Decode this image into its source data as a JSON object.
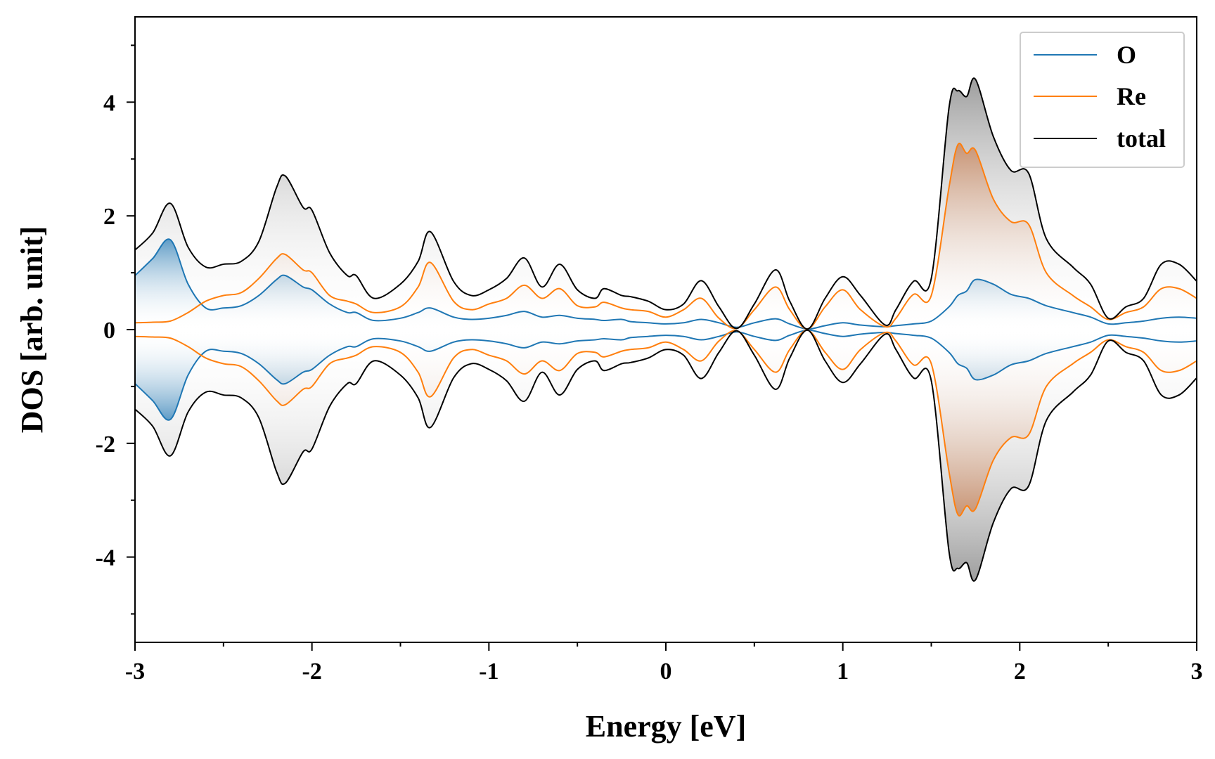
{
  "chart_data": {
    "type": "line",
    "title": "",
    "xlabel": "Energy [eV]",
    "ylabel": "DOS [arb. unit]",
    "xlim": [
      -3,
      3
    ],
    "ylim": [
      -5.5,
      5.5
    ],
    "x_ticks": [
      -3,
      -2,
      -1,
      0,
      1,
      2,
      3
    ],
    "y_ticks": [
      -4,
      -2,
      0,
      2,
      4
    ],
    "mirrored_about_zero": true,
    "legend_position": "top-right",
    "grid": false,
    "x": [
      -3.0,
      -2.9,
      -2.8,
      -2.7,
      -2.6,
      -2.5,
      -2.4,
      -2.3,
      -2.2,
      -2.15,
      -2.05,
      -2.0,
      -1.9,
      -1.8,
      -1.75,
      -1.65,
      -1.5,
      -1.4,
      -1.33,
      -1.2,
      -1.1,
      -1.0,
      -0.9,
      -0.8,
      -0.7,
      -0.6,
      -0.5,
      -0.4,
      -0.35,
      -0.25,
      -0.2,
      -0.1,
      0.0,
      0.1,
      0.2,
      0.3,
      0.4,
      0.5,
      0.62,
      0.7,
      0.8,
      0.9,
      1.0,
      1.1,
      1.24,
      1.3,
      1.4,
      1.5,
      1.6,
      1.65,
      1.7,
      1.75,
      1.85,
      1.95,
      2.05,
      2.15,
      2.3,
      2.4,
      2.5,
      2.6,
      2.7,
      2.8,
      2.9,
      3.0
    ],
    "series": [
      {
        "name": "O",
        "color": "#1f77b4",
        "values": [
          0.95,
          1.25,
          1.58,
          0.8,
          0.38,
          0.38,
          0.42,
          0.6,
          0.88,
          0.95,
          0.75,
          0.7,
          0.45,
          0.3,
          0.3,
          0.16,
          0.2,
          0.3,
          0.38,
          0.22,
          0.18,
          0.2,
          0.25,
          0.32,
          0.22,
          0.25,
          0.2,
          0.18,
          0.16,
          0.18,
          0.14,
          0.12,
          0.1,
          0.12,
          0.18,
          0.12,
          0.04,
          0.12,
          0.19,
          0.1,
          0.01,
          0.07,
          0.12,
          0.08,
          0.05,
          0.07,
          0.1,
          0.15,
          0.4,
          0.6,
          0.68,
          0.88,
          0.8,
          0.62,
          0.55,
          0.42,
          0.3,
          0.22,
          0.1,
          0.12,
          0.15,
          0.2,
          0.22,
          0.2
        ]
      },
      {
        "name": "Re",
        "color": "#ff7f0e",
        "values": [
          0.12,
          0.13,
          0.15,
          0.3,
          0.5,
          0.6,
          0.65,
          0.9,
          1.25,
          1.32,
          1.05,
          1.0,
          0.6,
          0.5,
          0.45,
          0.3,
          0.4,
          0.75,
          1.18,
          0.5,
          0.35,
          0.45,
          0.55,
          0.78,
          0.55,
          0.72,
          0.42,
          0.4,
          0.48,
          0.38,
          0.35,
          0.32,
          0.22,
          0.35,
          0.55,
          0.2,
          0.02,
          0.35,
          0.75,
          0.35,
          0.01,
          0.4,
          0.7,
          0.35,
          0.05,
          0.2,
          0.62,
          0.6,
          2.5,
          3.25,
          3.1,
          3.15,
          2.3,
          1.9,
          1.85,
          1.0,
          0.6,
          0.4,
          0.18,
          0.3,
          0.4,
          0.72,
          0.72,
          0.55
        ]
      },
      {
        "name": "total",
        "color": "#000000",
        "values": [
          1.4,
          1.7,
          2.22,
          1.45,
          1.1,
          1.15,
          1.2,
          1.55,
          2.5,
          2.7,
          2.15,
          2.1,
          1.35,
          0.95,
          0.95,
          0.55,
          0.8,
          1.2,
          1.72,
          0.85,
          0.6,
          0.7,
          0.9,
          1.26,
          0.75,
          1.15,
          0.7,
          0.55,
          0.72,
          0.6,
          0.58,
          0.5,
          0.35,
          0.45,
          0.86,
          0.4,
          0.02,
          0.45,
          1.05,
          0.5,
          0.01,
          0.55,
          0.93,
          0.6,
          0.08,
          0.35,
          0.85,
          0.9,
          3.9,
          4.2,
          4.1,
          4.4,
          3.4,
          2.8,
          2.75,
          1.6,
          1.1,
          0.8,
          0.2,
          0.4,
          0.55,
          1.15,
          1.15,
          0.85
        ]
      }
    ]
  }
}
